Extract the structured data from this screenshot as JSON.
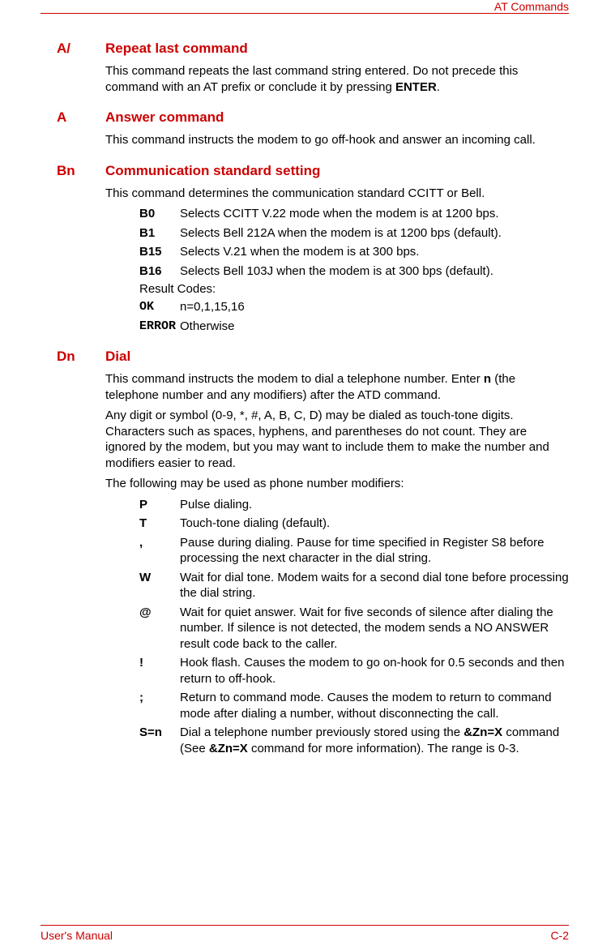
{
  "header": {
    "title": "AT Commands"
  },
  "footer": {
    "left": "User's Manual",
    "right": "C-2"
  },
  "sections": {
    "s1": {
      "code": "A/",
      "title": "Repeat last command",
      "p1a": "This command repeats the last command string entered. Do not precede this command with an AT prefix or conclude it by pressing ",
      "p1b": "ENTER",
      "p1c": "."
    },
    "s2": {
      "code": "A",
      "title": "Answer command",
      "p1": "This command instructs the modem to go off-hook and answer an incoming call."
    },
    "s3": {
      "code": "Bn",
      "title": "Communication standard setting",
      "p1": "This command determines the communication standard CCITT or Bell.",
      "opts": [
        {
          "c": "B0",
          "d": "Selects CCITT V.22 mode when the modem is at 1200 bps."
        },
        {
          "c": "B1",
          "d": "Selects Bell 212A when the modem is at 1200 bps (default)."
        },
        {
          "c": "B15",
          "d": "Selects V.21 when the modem is at 300 bps."
        },
        {
          "c": "B16",
          "d": "Selects Bell 103J when the modem is at 300 bps (default)."
        }
      ],
      "result_label": "Result Codes:",
      "results": [
        {
          "c": "OK",
          "d": "n=0,1,15,16"
        },
        {
          "c": "ERROR",
          "d": "Otherwise"
        }
      ]
    },
    "s4": {
      "code": "Dn",
      "title": "Dial",
      "p1a": "This command instructs the modem to dial a telephone number. Enter ",
      "p1b": "n",
      "p1c": " (the telephone number and any modifiers) after the ATD command.",
      "p2": "Any digit or symbol (0-9, *, #, A, B, C, D) may be dialed as touch-tone digits. Characters such as spaces, hyphens, and parentheses do not count. They are ignored by the modem, but you may want to include them to make the number and modifiers easier to read.",
      "p3": "The following may be used as phone number modifiers:",
      "opts": [
        {
          "c": "P",
          "d": "Pulse dialing."
        },
        {
          "c": "T",
          "d": "Touch-tone dialing (default)."
        },
        {
          "c": ",",
          "d": "Pause during dialing. Pause for time specified in Register S8 before processing the next character in the dial string."
        },
        {
          "c": "W",
          "d": "Wait for dial tone. Modem waits for a second dial tone before processing the dial string."
        },
        {
          "c": "@",
          "d": "Wait for quiet answer. Wait for five seconds of silence after dialing the number. If silence is not detected, the modem sends a NO ANSWER result code back to the caller."
        },
        {
          "c": "!",
          "d": "Hook flash. Causes the modem to go on-hook for 0.5 seconds and then return to off-hook."
        },
        {
          "c": ";",
          "d": "Return to command mode. Causes the modem to return to command mode after dialing a number, without disconnecting the call."
        }
      ],
      "opt_sn": {
        "c": "S=n",
        "d1": "Dial a telephone number previously stored using the ",
        "d2": "&Zn=X",
        "d3": " command (See ",
        "d4": "&Zn=X",
        "d5": " command for more information). The range is 0-3."
      }
    }
  }
}
